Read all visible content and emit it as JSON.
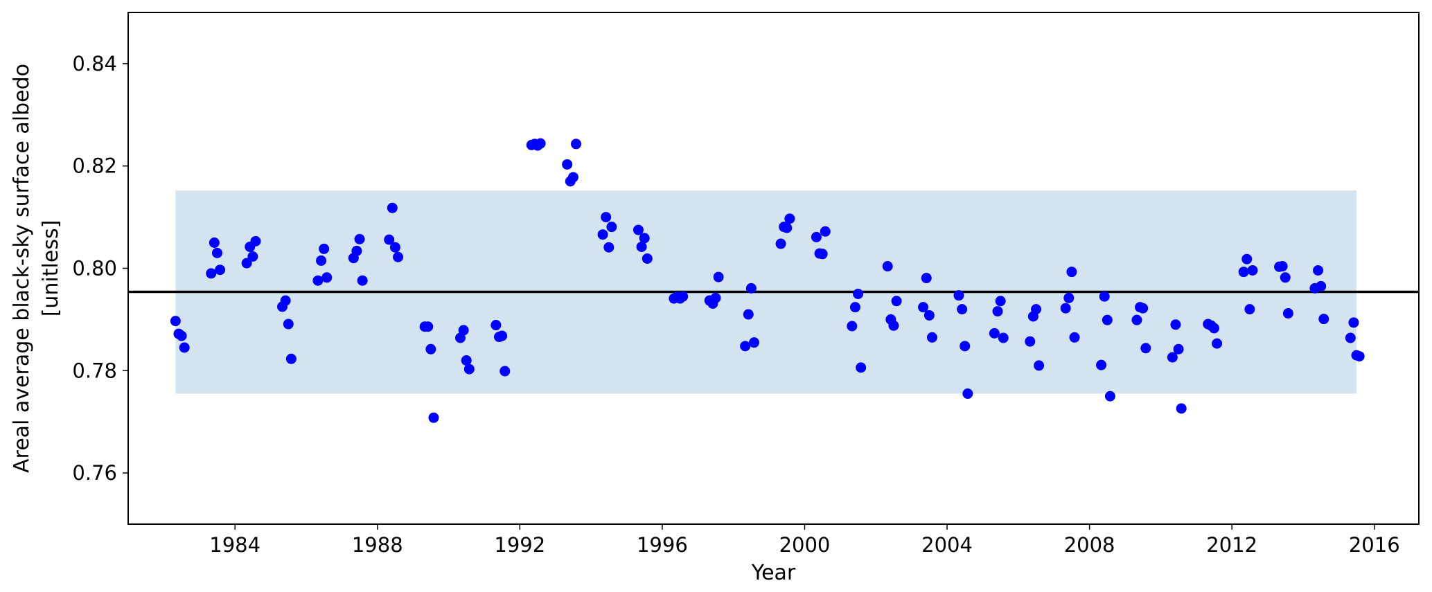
{
  "chart_data": {
    "type": "scatter",
    "title": "",
    "xlabel": "Year",
    "ylabel": [
      "Areal average black-sky surface albedo",
      "[unitless]"
    ],
    "xlim": [
      1981.0,
      2017.25
    ],
    "ylim": [
      0.75,
      0.85
    ],
    "xticks": [
      1984,
      1988,
      1992,
      1996,
      2000,
      2004,
      2008,
      2012,
      2016
    ],
    "xtick_labels": [
      "1984",
      "1988",
      "1992",
      "1996",
      "2000",
      "2004",
      "2008",
      "2012",
      "2016"
    ],
    "yticks": [
      0.76,
      0.78,
      0.8,
      0.82,
      0.84
    ],
    "ytick_labels": [
      "0.76",
      "0.78",
      "0.80",
      "0.82",
      "0.84"
    ],
    "grid": false,
    "mean_line": 0.7954,
    "band": {
      "x": [
        1982.33,
        2015.5
      ],
      "y": [
        0.7755,
        0.8152
      ]
    },
    "colors": {
      "points": "#0000ff",
      "band": "#d3e3f0",
      "mean_line": "#000000"
    },
    "points": [
      {
        "x": 1982.33,
        "y": 0.7897
      },
      {
        "x": 1982.42,
        "y": 0.7872
      },
      {
        "x": 1982.5,
        "y": 0.7868
      },
      {
        "x": 1982.58,
        "y": 0.7845
      },
      {
        "x": 1983.33,
        "y": 0.799
      },
      {
        "x": 1983.42,
        "y": 0.805
      },
      {
        "x": 1983.5,
        "y": 0.803
      },
      {
        "x": 1983.58,
        "y": 0.7997
      },
      {
        "x": 1984.33,
        "y": 0.801
      },
      {
        "x": 1984.42,
        "y": 0.8042
      },
      {
        "x": 1984.5,
        "y": 0.8023
      },
      {
        "x": 1984.58,
        "y": 0.8053
      },
      {
        "x": 1985.33,
        "y": 0.7925
      },
      {
        "x": 1985.42,
        "y": 0.7937
      },
      {
        "x": 1985.5,
        "y": 0.7891
      },
      {
        "x": 1985.58,
        "y": 0.7823
      },
      {
        "x": 1986.33,
        "y": 0.7976
      },
      {
        "x": 1986.42,
        "y": 0.8015
      },
      {
        "x": 1986.5,
        "y": 0.8038
      },
      {
        "x": 1986.58,
        "y": 0.7982
      },
      {
        "x": 1987.33,
        "y": 0.802
      },
      {
        "x": 1987.42,
        "y": 0.8034
      },
      {
        "x": 1987.5,
        "y": 0.8057
      },
      {
        "x": 1987.58,
        "y": 0.7976
      },
      {
        "x": 1988.33,
        "y": 0.8056
      },
      {
        "x": 1988.42,
        "y": 0.8118
      },
      {
        "x": 1988.5,
        "y": 0.8041
      },
      {
        "x": 1988.58,
        "y": 0.8022
      },
      {
        "x": 1989.33,
        "y": 0.7886
      },
      {
        "x": 1989.42,
        "y": 0.7886
      },
      {
        "x": 1989.5,
        "y": 0.7842
      },
      {
        "x": 1989.58,
        "y": 0.7708
      },
      {
        "x": 1990.33,
        "y": 0.7864
      },
      {
        "x": 1990.42,
        "y": 0.7879
      },
      {
        "x": 1990.5,
        "y": 0.782
      },
      {
        "x": 1990.58,
        "y": 0.7803
      },
      {
        "x": 1991.33,
        "y": 0.7889
      },
      {
        "x": 1991.42,
        "y": 0.7866
      },
      {
        "x": 1991.5,
        "y": 0.7868
      },
      {
        "x": 1991.58,
        "y": 0.7799
      },
      {
        "x": 1992.33,
        "y": 0.8241
      },
      {
        "x": 1992.42,
        "y": 0.8243
      },
      {
        "x": 1992.5,
        "y": 0.824
      },
      {
        "x": 1992.58,
        "y": 0.8244
      },
      {
        "x": 1993.33,
        "y": 0.8203
      },
      {
        "x": 1993.42,
        "y": 0.817
      },
      {
        "x": 1993.5,
        "y": 0.8178
      },
      {
        "x": 1993.58,
        "y": 0.8243
      },
      {
        "x": 1994.33,
        "y": 0.8066
      },
      {
        "x": 1994.42,
        "y": 0.81
      },
      {
        "x": 1994.5,
        "y": 0.8041
      },
      {
        "x": 1994.58,
        "y": 0.8081
      },
      {
        "x": 1995.33,
        "y": 0.8075
      },
      {
        "x": 1995.42,
        "y": 0.8042
      },
      {
        "x": 1995.5,
        "y": 0.8059
      },
      {
        "x": 1995.58,
        "y": 0.8019
      },
      {
        "x": 1996.33,
        "y": 0.7941
      },
      {
        "x": 1996.42,
        "y": 0.7944
      },
      {
        "x": 1996.5,
        "y": 0.7941
      },
      {
        "x": 1996.58,
        "y": 0.7945
      },
      {
        "x": 1997.33,
        "y": 0.7937
      },
      {
        "x": 1997.42,
        "y": 0.7931
      },
      {
        "x": 1997.5,
        "y": 0.7942
      },
      {
        "x": 1997.58,
        "y": 0.7983
      },
      {
        "x": 1998.33,
        "y": 0.7848
      },
      {
        "x": 1998.42,
        "y": 0.791
      },
      {
        "x": 1998.5,
        "y": 0.7961
      },
      {
        "x": 1998.58,
        "y": 0.7855
      },
      {
        "x": 1999.33,
        "y": 0.8048
      },
      {
        "x": 1999.42,
        "y": 0.8081
      },
      {
        "x": 1999.5,
        "y": 0.8079
      },
      {
        "x": 1999.58,
        "y": 0.8097
      },
      {
        "x": 2000.33,
        "y": 0.8061
      },
      {
        "x": 2000.42,
        "y": 0.8029
      },
      {
        "x": 2000.5,
        "y": 0.8028
      },
      {
        "x": 2000.58,
        "y": 0.8072
      },
      {
        "x": 2001.33,
        "y": 0.7887
      },
      {
        "x": 2001.42,
        "y": 0.7924
      },
      {
        "x": 2001.5,
        "y": 0.795
      },
      {
        "x": 2001.58,
        "y": 0.7806
      },
      {
        "x": 2002.33,
        "y": 0.8004
      },
      {
        "x": 2002.42,
        "y": 0.79
      },
      {
        "x": 2002.5,
        "y": 0.7888
      },
      {
        "x": 2002.58,
        "y": 0.7936
      },
      {
        "x": 2003.33,
        "y": 0.7924
      },
      {
        "x": 2003.42,
        "y": 0.7981
      },
      {
        "x": 2003.5,
        "y": 0.7908
      },
      {
        "x": 2003.58,
        "y": 0.7865
      },
      {
        "x": 2004.33,
        "y": 0.7947
      },
      {
        "x": 2004.42,
        "y": 0.792
      },
      {
        "x": 2004.5,
        "y": 0.7848
      },
      {
        "x": 2004.58,
        "y": 0.7755
      },
      {
        "x": 2005.33,
        "y": 0.7873
      },
      {
        "x": 2005.42,
        "y": 0.7916
      },
      {
        "x": 2005.5,
        "y": 0.7936
      },
      {
        "x": 2005.58,
        "y": 0.7864
      },
      {
        "x": 2006.33,
        "y": 0.7857
      },
      {
        "x": 2006.42,
        "y": 0.7906
      },
      {
        "x": 2006.5,
        "y": 0.792
      },
      {
        "x": 2006.58,
        "y": 0.781
      },
      {
        "x": 2007.33,
        "y": 0.7922
      },
      {
        "x": 2007.42,
        "y": 0.7942
      },
      {
        "x": 2007.5,
        "y": 0.7993
      },
      {
        "x": 2007.58,
        "y": 0.7865
      },
      {
        "x": 2008.33,
        "y": 0.7811
      },
      {
        "x": 2008.42,
        "y": 0.7945
      },
      {
        "x": 2008.5,
        "y": 0.7899
      },
      {
        "x": 2008.58,
        "y": 0.775
      },
      {
        "x": 2009.33,
        "y": 0.7899
      },
      {
        "x": 2009.42,
        "y": 0.7924
      },
      {
        "x": 2009.5,
        "y": 0.7922
      },
      {
        "x": 2009.58,
        "y": 0.7844
      },
      {
        "x": 2010.33,
        "y": 0.7826
      },
      {
        "x": 2010.42,
        "y": 0.789
      },
      {
        "x": 2010.5,
        "y": 0.7842
      },
      {
        "x": 2010.58,
        "y": 0.7726
      },
      {
        "x": 2011.33,
        "y": 0.7891
      },
      {
        "x": 2011.42,
        "y": 0.7888
      },
      {
        "x": 2011.5,
        "y": 0.7883
      },
      {
        "x": 2011.58,
        "y": 0.7853
      },
      {
        "x": 2012.33,
        "y": 0.7993
      },
      {
        "x": 2012.42,
        "y": 0.8018
      },
      {
        "x": 2012.5,
        "y": 0.792
      },
      {
        "x": 2012.58,
        "y": 0.7996
      },
      {
        "x": 2013.33,
        "y": 0.8003
      },
      {
        "x": 2013.42,
        "y": 0.8004
      },
      {
        "x": 2013.5,
        "y": 0.7982
      },
      {
        "x": 2013.58,
        "y": 0.7912
      },
      {
        "x": 2014.33,
        "y": 0.7961
      },
      {
        "x": 2014.42,
        "y": 0.7996
      },
      {
        "x": 2014.5,
        "y": 0.7965
      },
      {
        "x": 2014.58,
        "y": 0.7901
      },
      {
        "x": 2015.33,
        "y": 0.7864
      },
      {
        "x": 2015.42,
        "y": 0.7894
      },
      {
        "x": 2015.5,
        "y": 0.783
      },
      {
        "x": 2015.58,
        "y": 0.7828
      }
    ]
  }
}
